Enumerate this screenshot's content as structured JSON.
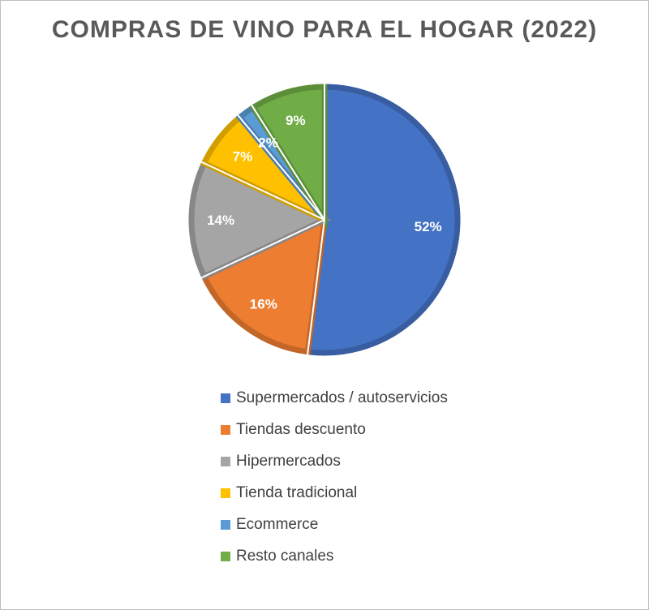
{
  "chart_data": {
    "type": "pie",
    "title": "COMPRAS DE VINO PARA EL HOGAR (2022)",
    "categories": [
      "Supermercados / autoservicios",
      "Tiendas descuento",
      "Hipermercados",
      "Tienda tradicional",
      "Ecommerce",
      "Resto canales"
    ],
    "values": [
      52,
      16,
      14,
      7,
      2,
      9
    ],
    "data_labels": [
      "52%",
      "16%",
      "14%",
      "7%",
      "2%",
      "9%"
    ],
    "colors": [
      "#4472c4",
      "#ed7d31",
      "#a5a5a5",
      "#ffc000",
      "#5b9bd5",
      "#70ad47"
    ],
    "start_angle_deg": 0,
    "direction": "clockwise",
    "legend_position": "bottom"
  }
}
